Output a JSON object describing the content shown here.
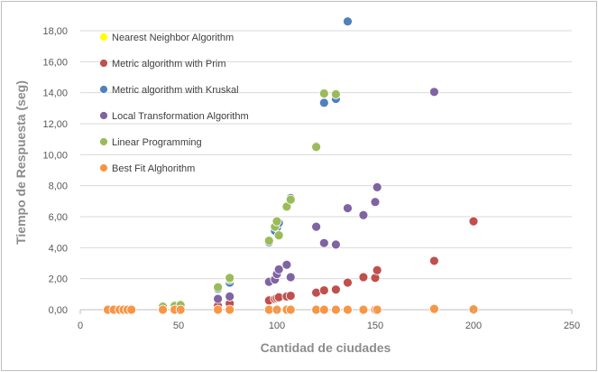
{
  "chart_data": {
    "type": "scatter",
    "title": "",
    "xlabel": "Cantidad de ciudades",
    "ylabel": "Tiempo de Respuesta (seg)",
    "xlim": [
      0,
      250
    ],
    "ylim": [
      0,
      18
    ],
    "x_ticks": [
      "0",
      "50",
      "100",
      "150",
      "200",
      "250"
    ],
    "y_ticks": [
      "0,00",
      "2,00",
      "4,00",
      "6,00",
      "8,00",
      "10,00",
      "12,00",
      "14,00",
      "16,00",
      "18,00"
    ],
    "grid": "horizontal",
    "legend_position": "top-left-inside",
    "series": [
      {
        "name": "Nearest Neighbor Algorithm",
        "color": "#ffff00",
        "points": [
          [
            14,
            0
          ],
          [
            17,
            0
          ],
          [
            20,
            0
          ],
          [
            22,
            0
          ],
          [
            24,
            0
          ],
          [
            26,
            0
          ],
          [
            42,
            0
          ],
          [
            48,
            0
          ],
          [
            51,
            0
          ],
          [
            70,
            0
          ],
          [
            76,
            0
          ],
          [
            96,
            0
          ],
          [
            100,
            0
          ],
          [
            105,
            0
          ],
          [
            107,
            0
          ],
          [
            120,
            0
          ],
          [
            124,
            0
          ],
          [
            130,
            0
          ],
          [
            136,
            0
          ],
          [
            144,
            0
          ],
          [
            150,
            0
          ],
          [
            151,
            0
          ],
          [
            180,
            0
          ],
          [
            200,
            0
          ]
        ]
      },
      {
        "name": "Metric algorithm with Prim",
        "color": "#c0504d",
        "points": [
          [
            14,
            0
          ],
          [
            17,
            0
          ],
          [
            20,
            0
          ],
          [
            22,
            0
          ],
          [
            24,
            0
          ],
          [
            26,
            0
          ],
          [
            42,
            0.02
          ],
          [
            48,
            0.05
          ],
          [
            51,
            0.08
          ],
          [
            70,
            0.25
          ],
          [
            76,
            0.4
          ],
          [
            96,
            0.6
          ],
          [
            99,
            0.7
          ],
          [
            100,
            0.75
          ],
          [
            101,
            0.8
          ],
          [
            105,
            0.85
          ],
          [
            107,
            0.9
          ],
          [
            120,
            1.1
          ],
          [
            124,
            1.25
          ],
          [
            130,
            1.3
          ],
          [
            136,
            1.75
          ],
          [
            144,
            2.1
          ],
          [
            150,
            2.05
          ],
          [
            151,
            2.55
          ],
          [
            180,
            3.15
          ],
          [
            200,
            5.7
          ]
        ]
      },
      {
        "name": "Metric algorithm with Kruskal",
        "color": "#4f81bd",
        "points": [
          [
            42,
            0.25
          ],
          [
            48,
            0.3
          ],
          [
            51,
            0.35
          ],
          [
            70,
            1.35
          ],
          [
            76,
            1.75
          ],
          [
            96,
            4.35
          ],
          [
            99,
            5.1
          ],
          [
            100,
            5.3
          ],
          [
            101,
            5.6
          ],
          [
            105,
            6.7
          ],
          [
            107,
            7.2
          ],
          [
            120,
            10.55
          ],
          [
            124,
            13.35
          ],
          [
            130,
            13.6
          ],
          [
            136,
            18.6
          ]
        ]
      },
      {
        "name": "Local Transformation Algorithm",
        "color": "#8064a2",
        "points": [
          [
            70,
            0.7
          ],
          [
            76,
            0.85
          ],
          [
            96,
            1.8
          ],
          [
            99,
            1.95
          ],
          [
            100,
            2.3
          ],
          [
            101,
            2.6
          ],
          [
            105,
            2.9
          ],
          [
            107,
            2.1
          ],
          [
            120,
            5.35
          ],
          [
            124,
            4.3
          ],
          [
            130,
            4.2
          ],
          [
            136,
            6.55
          ],
          [
            144,
            6.1
          ],
          [
            150,
            6.95
          ],
          [
            151,
            7.9
          ],
          [
            180,
            14.05
          ]
        ]
      },
      {
        "name": "Linear Programming",
        "color": "#9bbb59",
        "points": [
          [
            42,
            0.2
          ],
          [
            48,
            0.25
          ],
          [
            51,
            0.3
          ],
          [
            70,
            1.45
          ],
          [
            76,
            1.95
          ],
          [
            76,
            2.05
          ],
          [
            96,
            4.45
          ],
          [
            99,
            5.35
          ],
          [
            100,
            5.7
          ],
          [
            101,
            4.8
          ],
          [
            105,
            6.65
          ],
          [
            107,
            7.1
          ],
          [
            120,
            10.5
          ],
          [
            124,
            13.95
          ],
          [
            130,
            13.9
          ]
        ]
      },
      {
        "name": "Best Fit Alghorithm",
        "color": "#f79646",
        "points": [
          [
            14,
            0
          ],
          [
            17,
            0
          ],
          [
            20,
            0
          ],
          [
            22,
            0
          ],
          [
            24,
            0
          ],
          [
            26,
            0
          ],
          [
            42,
            0
          ],
          [
            48,
            0
          ],
          [
            51,
            0
          ],
          [
            70,
            0
          ],
          [
            76,
            0
          ],
          [
            96,
            0
          ],
          [
            100,
            0
          ],
          [
            105,
            0
          ],
          [
            107,
            0
          ],
          [
            120,
            0
          ],
          [
            124,
            0
          ],
          [
            130,
            0
          ],
          [
            136,
            0
          ],
          [
            144,
            0
          ],
          [
            150,
            0
          ],
          [
            151,
            0
          ],
          [
            180,
            0.05
          ],
          [
            200,
            0.02
          ]
        ]
      }
    ]
  }
}
